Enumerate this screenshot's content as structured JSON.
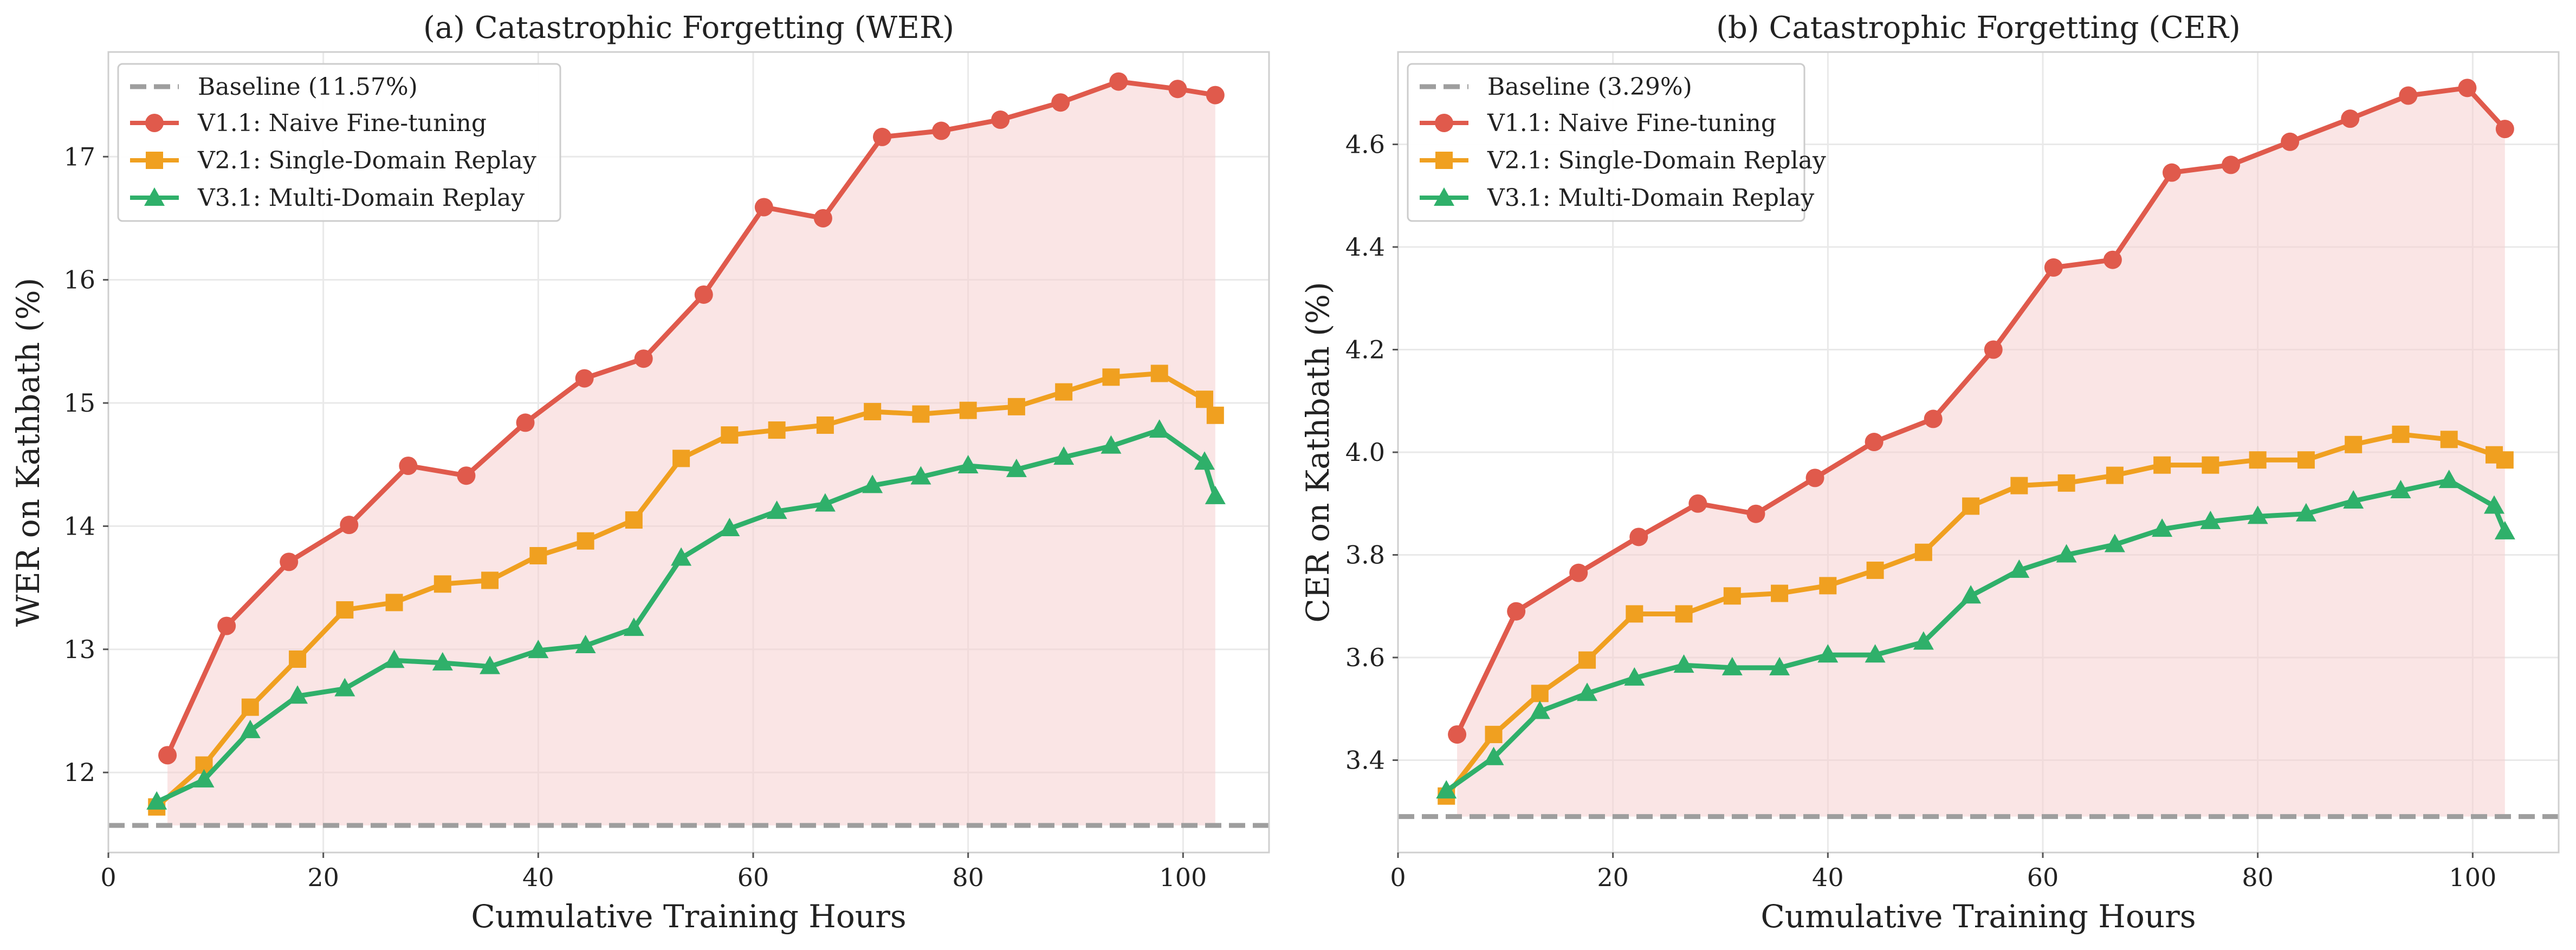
{
  "chart_data": [
    {
      "type": "line",
      "title": "(a) Catastrophic Forgetting (WER)",
      "xlabel": "Cumulative Training Hours",
      "ylabel": "WER on Kathbath (%)",
      "xlim": [
        0,
        108
      ],
      "ylim": [
        11.35,
        17.85
      ],
      "xticks": [
        0,
        20,
        40,
        60,
        80,
        100
      ],
      "yticks": [
        12,
        13,
        14,
        15,
        16,
        17
      ],
      "ytick_labels": [
        "12",
        "13",
        "14",
        "15",
        "16",
        "17"
      ],
      "grid": true,
      "legend_position": "top-left",
      "baseline": {
        "name": "Baseline (11.57%)",
        "value": 11.57,
        "color": "#9e9e9e"
      },
      "fill_between": {
        "upper": "V1.1: Naive Fine-tuning",
        "lower": "baseline",
        "color": "#f6cfcf"
      },
      "series": [
        {
          "name": "V1.1: Naive Fine-tuning",
          "color": "#e05a4c",
          "marker": "circle",
          "x": [
            5.5,
            11,
            16.8,
            22.4,
            27.9,
            33.3,
            38.8,
            44.3,
            49.8,
            55.4,
            61,
            66.5,
            72,
            77.5,
            83,
            88.6,
            94,
            99.5,
            103
          ],
          "y": [
            12.14,
            13.19,
            13.71,
            14.01,
            14.49,
            14.41,
            14.84,
            15.2,
            15.36,
            15.88,
            16.59,
            16.5,
            17.16,
            17.21,
            17.3,
            17.44,
            17.61,
            17.55,
            17.5
          ]
        },
        {
          "name": "V2.1: Single-Domain Replay",
          "color": "#f0a020",
          "marker": "square",
          "x": [
            4.5,
            8.9,
            13.2,
            17.6,
            22,
            26.6,
            31.1,
            35.5,
            40,
            44.4,
            48.9,
            53.3,
            57.8,
            62.2,
            66.7,
            71.1,
            75.6,
            80,
            84.5,
            88.9,
            93.3,
            97.8,
            102,
            103
          ],
          "y": [
            11.72,
            12.06,
            12.53,
            12.92,
            13.32,
            13.38,
            13.53,
            13.56,
            13.76,
            13.88,
            14.05,
            14.55,
            14.74,
            14.78,
            14.82,
            14.93,
            14.91,
            14.94,
            14.97,
            15.09,
            15.21,
            15.24,
            15.03,
            14.9
          ]
        },
        {
          "name": "V3.1: Multi-Domain Replay",
          "color": "#2fb06a",
          "marker": "triangle",
          "x": [
            4.5,
            8.9,
            13.2,
            17.6,
            22,
            26.6,
            31.1,
            35.5,
            40,
            44.4,
            48.9,
            53.3,
            57.8,
            62.2,
            66.7,
            71.1,
            75.6,
            80,
            84.5,
            88.9,
            93.3,
            97.8,
            102,
            103
          ],
          "y": [
            11.76,
            11.94,
            12.34,
            12.62,
            12.68,
            12.91,
            12.89,
            12.86,
            12.99,
            13.03,
            13.17,
            13.74,
            13.98,
            14.12,
            14.18,
            14.33,
            14.4,
            14.49,
            14.46,
            14.56,
            14.65,
            14.78,
            14.52,
            14.24
          ]
        }
      ]
    },
    {
      "type": "line",
      "title": "(b) Catastrophic Forgetting (CER)",
      "xlabel": "Cumulative Training Hours",
      "ylabel": "CER on Kathbath (%)",
      "xlim": [
        0,
        108
      ],
      "ylim": [
        3.22,
        4.78
      ],
      "xticks": [
        0,
        20,
        40,
        60,
        80,
        100
      ],
      "yticks": [
        3.4,
        3.6,
        3.8,
        4.0,
        4.2,
        4.4,
        4.6
      ],
      "ytick_labels": [
        "3.4",
        "3.6",
        "3.8",
        "4.0",
        "4.2",
        "4.4",
        "4.6"
      ],
      "grid": true,
      "legend_position": "top-left",
      "baseline": {
        "name": "Baseline (3.29%)",
        "value": 3.29,
        "color": "#9e9e9e"
      },
      "fill_between": {
        "upper": "V1.1: Naive Fine-tuning",
        "lower": "baseline",
        "color": "#f6cfcf"
      },
      "series": [
        {
          "name": "V1.1: Naive Fine-tuning",
          "color": "#e05a4c",
          "marker": "circle",
          "x": [
            5.5,
            11,
            16.8,
            22.4,
            27.9,
            33.3,
            38.8,
            44.3,
            49.8,
            55.4,
            61,
            66.5,
            72,
            77.5,
            83,
            88.6,
            94,
            99.5,
            103
          ],
          "y": [
            3.45,
            3.69,
            3.765,
            3.835,
            3.9,
            3.88,
            3.95,
            4.02,
            4.065,
            4.2,
            4.36,
            4.375,
            4.545,
            4.56,
            4.605,
            4.65,
            4.695,
            4.71,
            4.63
          ]
        },
        {
          "name": "V2.1: Single-Domain Replay",
          "color": "#f0a020",
          "marker": "square",
          "x": [
            4.5,
            8.9,
            13.2,
            17.6,
            22,
            26.6,
            31.1,
            35.5,
            40,
            44.4,
            48.9,
            53.3,
            57.8,
            62.2,
            66.7,
            71.1,
            75.6,
            80,
            84.5,
            88.9,
            93.3,
            97.8,
            102,
            103
          ],
          "y": [
            3.33,
            3.45,
            3.53,
            3.595,
            3.685,
            3.685,
            3.72,
            3.725,
            3.74,
            3.77,
            3.805,
            3.895,
            3.935,
            3.94,
            3.955,
            3.975,
            3.975,
            3.985,
            3.985,
            4.015,
            4.035,
            4.025,
            3.995,
            3.985
          ]
        },
        {
          "name": "V3.1: Multi-Domain Replay",
          "color": "#2fb06a",
          "marker": "triangle",
          "x": [
            4.5,
            8.9,
            13.2,
            17.6,
            22,
            26.6,
            31.1,
            35.5,
            40,
            44.4,
            48.9,
            53.3,
            57.8,
            62.2,
            66.7,
            71.1,
            75.6,
            80,
            84.5,
            88.9,
            93.3,
            97.8,
            102,
            103
          ],
          "y": [
            3.34,
            3.405,
            3.495,
            3.53,
            3.56,
            3.585,
            3.58,
            3.58,
            3.605,
            3.605,
            3.63,
            3.72,
            3.77,
            3.8,
            3.82,
            3.85,
            3.865,
            3.875,
            3.88,
            3.905,
            3.925,
            3.945,
            3.895,
            3.845
          ]
        }
      ]
    }
  ]
}
